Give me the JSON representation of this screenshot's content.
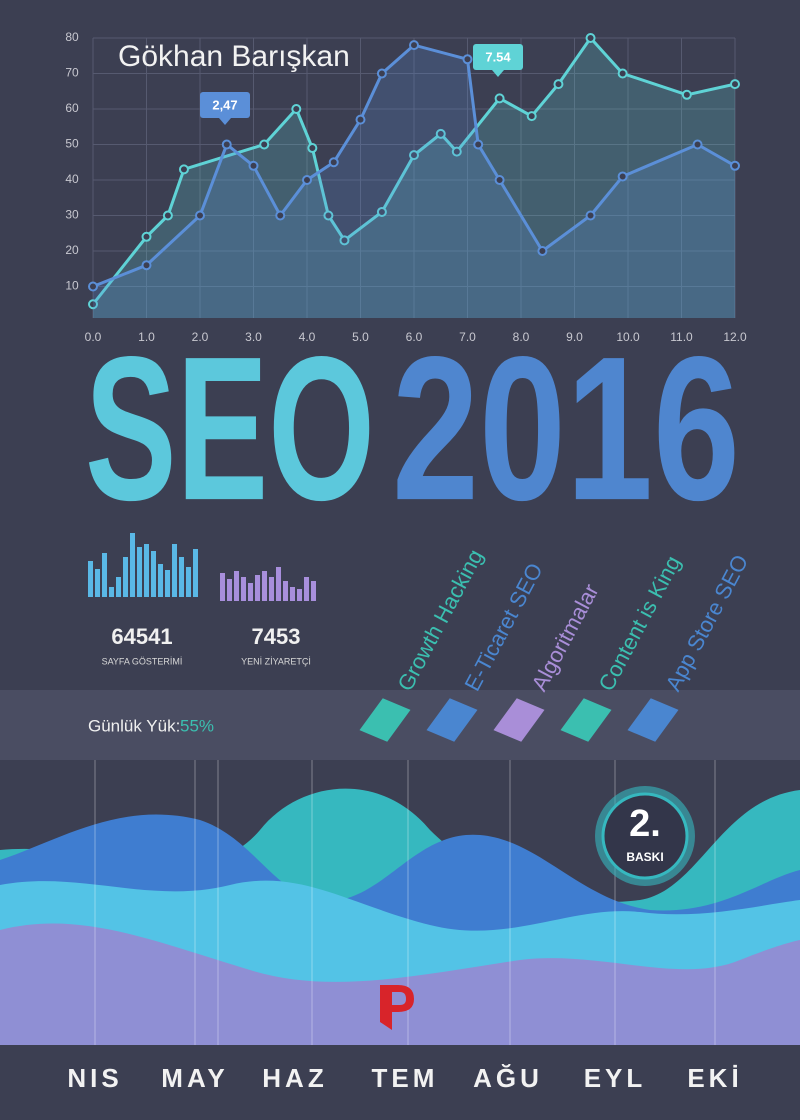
{
  "author": "Gökhan Barışkan",
  "chart_data": {
    "type": "line",
    "xlim": [
      0,
      12
    ],
    "ylim": [
      0,
      80
    ],
    "xticks": [
      {
        "value": 0,
        "label": "0.0"
      },
      {
        "value": 1,
        "label": "1.0"
      },
      {
        "value": 2,
        "label": "2.0"
      },
      {
        "value": 3,
        "label": "3.0"
      },
      {
        "value": 4,
        "label": "4.0"
      },
      {
        "value": 5,
        "label": "5.0"
      },
      {
        "value": 6,
        "label": "6.0"
      },
      {
        "value": 7,
        "label": "7.0"
      },
      {
        "value": 8,
        "label": "8.0"
      },
      {
        "value": 9,
        "label": "9.0"
      },
      {
        "value": 10,
        "label": "10.0"
      },
      {
        "value": 11,
        "label": "11.0"
      },
      {
        "value": 12,
        "label": "12.0"
      }
    ],
    "yticks": [
      10,
      20,
      30,
      40,
      50,
      60,
      70,
      80
    ],
    "grid": true,
    "series": [
      {
        "color": "#5fd3d6",
        "x": [
          0,
          1.0,
          1.4,
          1.7,
          3.2,
          3.8,
          4.1,
          4.4,
          4.7,
          5.4,
          6.0,
          6.5,
          6.8,
          7.6,
          8.2,
          8.7,
          9.3,
          9.9,
          11.1,
          12.0
        ],
        "values": [
          5,
          24,
          30,
          43,
          50,
          60,
          49,
          30,
          23,
          31,
          47,
          53,
          48,
          63,
          58,
          67,
          80,
          70,
          64,
          67
        ]
      },
      {
        "color": "#5b8fd8",
        "x": [
          0,
          1.0,
          2.0,
          2.5,
          3.0,
          3.5,
          4.0,
          4.5,
          5.0,
          5.4,
          6.0,
          7.0,
          7.2,
          7.6,
          8.4,
          9.3,
          9.9,
          11.3,
          12.0
        ],
        "values": [
          10,
          16,
          30,
          50,
          44,
          30,
          40,
          45,
          57,
          70,
          78,
          74,
          50,
          40,
          20,
          30,
          41,
          50,
          44
        ]
      }
    ],
    "annotations": [
      "2,47",
      "7.54"
    ]
  },
  "title": {
    "first": "SEO",
    "second": "2016"
  },
  "mini_bars": [
    {
      "color": "#5ab8e6",
      "values": [
        36,
        28,
        44,
        10,
        20,
        40,
        64,
        50,
        53,
        46,
        33,
        27,
        53,
        40,
        30,
        48
      ]
    },
    {
      "color": "#a88fdc",
      "values": [
        28,
        22,
        30,
        24,
        18,
        26,
        30,
        24,
        34,
        20,
        14,
        12,
        24,
        20
      ]
    }
  ],
  "stats": [
    {
      "number": "64541",
      "label": "SAYFA GÖSTERİMİ"
    },
    {
      "number": "7453",
      "label": "YENİ ZİYARETÇİ"
    }
  ],
  "load": {
    "label": "Günlük Yük:",
    "value": "55%"
  },
  "tags": [
    {
      "text": "Growth Hacking",
      "color": "#3bbfb0"
    },
    {
      "text": "E-Ticaret SEO",
      "color": "#4a86d0"
    },
    {
      "text": "Algoritmalar",
      "color": "#a98ed8"
    },
    {
      "text": "Content is King",
      "color": "#3bbfb0"
    },
    {
      "text": "App Store SEO",
      "color": "#4a86d0"
    }
  ],
  "badge": {
    "number": "2.",
    "label": "BASKI"
  },
  "months": [
    "NIS",
    "MAY",
    "HAZ",
    "TEM",
    "AĞU",
    "EYL",
    "EKİ"
  ]
}
